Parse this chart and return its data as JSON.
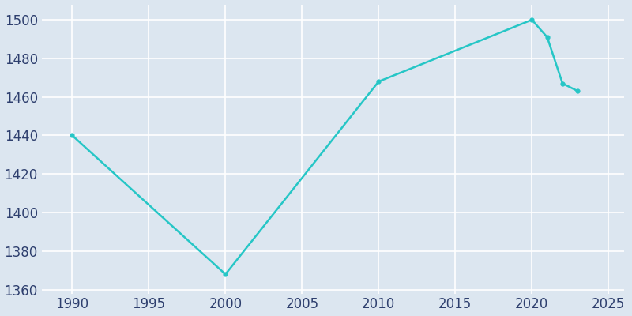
{
  "years": [
    1990,
    2000,
    2010,
    2020,
    2021,
    2022,
    2023
  ],
  "population": [
    1440,
    1368,
    1468,
    1500,
    1491,
    1467,
    1463
  ],
  "line_color": "#26C6C6",
  "marker": "o",
  "marker_size": 3.5,
  "line_width": 1.8,
  "bg_color": "#dce6f0",
  "plot_bg_color": "#dce6f0",
  "grid_color": "#ffffff",
  "tick_color": "#2e3f6e",
  "xlim": [
    1988,
    2026
  ],
  "ylim": [
    1358,
    1508
  ],
  "yticks": [
    1360,
    1380,
    1400,
    1420,
    1440,
    1460,
    1480,
    1500
  ],
  "xticks": [
    1990,
    1995,
    2000,
    2005,
    2010,
    2015,
    2020,
    2025
  ],
  "tick_fontsize": 12
}
